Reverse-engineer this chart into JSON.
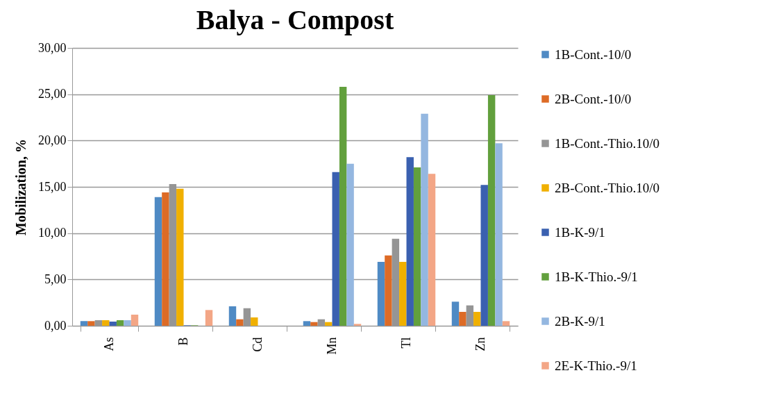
{
  "chart_data": {
    "type": "bar",
    "title": "Balya - Compost",
    "ylabel": "Mobilization, %",
    "categories": [
      "As",
      "B",
      "Cd",
      "Mn",
      "Tl",
      "Zn"
    ],
    "series": [
      {
        "name": "1B-Cont.-10/0",
        "color": "#4f8ac4",
        "values": [
          0.5,
          13.9,
          2.1,
          0.5,
          6.9,
          2.6
        ]
      },
      {
        "name": "2B-Cont.-10/0",
        "color": "#dd6b26",
        "values": [
          0.5,
          14.4,
          0.7,
          0.4,
          7.6,
          1.5
        ]
      },
      {
        "name": "1B-Cont.-Thio.10/0",
        "color": "#959595",
        "values": [
          0.6,
          15.3,
          1.9,
          0.7,
          9.4,
          2.2
        ]
      },
      {
        "name": "2B-Cont.-Thio.10/0",
        "color": "#f0b000",
        "values": [
          0.6,
          14.8,
          0.9,
          0.4,
          6.9,
          1.5
        ]
      },
      {
        "name": "1B-K-9/1",
        "color": "#3a60b0",
        "values": [
          0.45,
          0.05,
          0,
          16.6,
          18.2,
          15.2
        ]
      },
      {
        "name": "1B-K-Thio.-9/1",
        "color": "#62a03d",
        "values": [
          0.6,
          0.05,
          0,
          25.8,
          17.1,
          24.9
        ]
      },
      {
        "name": "2B-K-9/1",
        "color": "#94b7e0",
        "values": [
          0.6,
          0,
          0,
          17.5,
          22.9,
          19.7
        ]
      },
      {
        "name": "2E-K-Thio.-9/1",
        "color": "#f3a686",
        "values": [
          1.2,
          1.7,
          0,
          0.2,
          16.4,
          0.5
        ]
      }
    ],
    "ylim": [
      0,
      30
    ],
    "yticks": [
      {
        "value": 0,
        "label": "0,00"
      },
      {
        "value": 5,
        "label": "5,00"
      },
      {
        "value": 10,
        "label": "10,00"
      },
      {
        "value": 15,
        "label": "15,00"
      },
      {
        "value": 20,
        "label": "20,00"
      },
      {
        "value": 25,
        "label": "25,00"
      },
      {
        "value": 30,
        "label": "30,00"
      }
    ],
    "grid": "y",
    "legend": "right"
  }
}
